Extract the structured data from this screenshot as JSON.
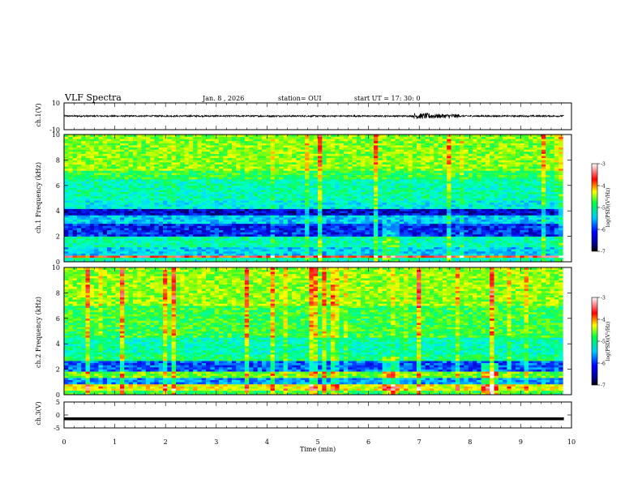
{
  "header": {
    "title": "VLF Spectra",
    "date": "Jan. 8 , 2026",
    "station": "station= OUI",
    "start": "start UT = 17: 30: 0"
  },
  "chart_data": [
    {
      "type": "line",
      "panel": "ch1-waveform",
      "ylabel": "ch.1(V)",
      "ylim": [
        -10,
        10
      ],
      "y_ticks": [
        "10",
        "-10"
      ],
      "xlim": [
        0,
        10
      ],
      "description_series": "noisy waveform around ~0 V with burst near t=7.3 min"
    },
    {
      "type": "heatmap",
      "panel": "ch1-spectrogram",
      "ylabel": "ch.1 Frequency (kHz)",
      "ylim": [
        0,
        10
      ],
      "y_ticks": [
        "0",
        "2",
        "4",
        "6",
        "8",
        "10"
      ],
      "xlim": [
        0,
        10
      ],
      "colorbar": {
        "label": "log(PSD)(V²/Hz)",
        "range": [
          -7,
          -3
        ],
        "ticks": [
          "-3",
          "-4",
          "-5",
          "-6",
          "-7"
        ]
      }
    },
    {
      "type": "heatmap",
      "panel": "ch2-spectrogram",
      "ylabel": "ch.2 Frequency (kHz)",
      "ylim": [
        0,
        10
      ],
      "y_ticks": [
        "0",
        "2",
        "4",
        "6",
        "8",
        "10"
      ],
      "xlim": [
        0,
        10
      ],
      "colorbar": {
        "label": "log(PSD)(V²/Hz)",
        "range": [
          -7,
          -3
        ],
        "ticks": [
          "-3",
          "-4",
          "-5",
          "-6",
          "-7"
        ]
      }
    },
    {
      "type": "line",
      "panel": "ch3-waveform",
      "ylabel": "ch.3(V)",
      "ylim": [
        -5,
        5
      ],
      "y_ticks": [
        "5",
        "0",
        "-5"
      ],
      "xlim": [
        0,
        10
      ],
      "xlabel": "Time (min)",
      "x_ticks": [
        "0",
        "1",
        "2",
        "3",
        "4",
        "5",
        "6",
        "7",
        "8",
        "9",
        "10"
      ],
      "value": -1.5
    }
  ],
  "colors": {
    "frame": "#000000",
    "background": "#ffffff"
  }
}
